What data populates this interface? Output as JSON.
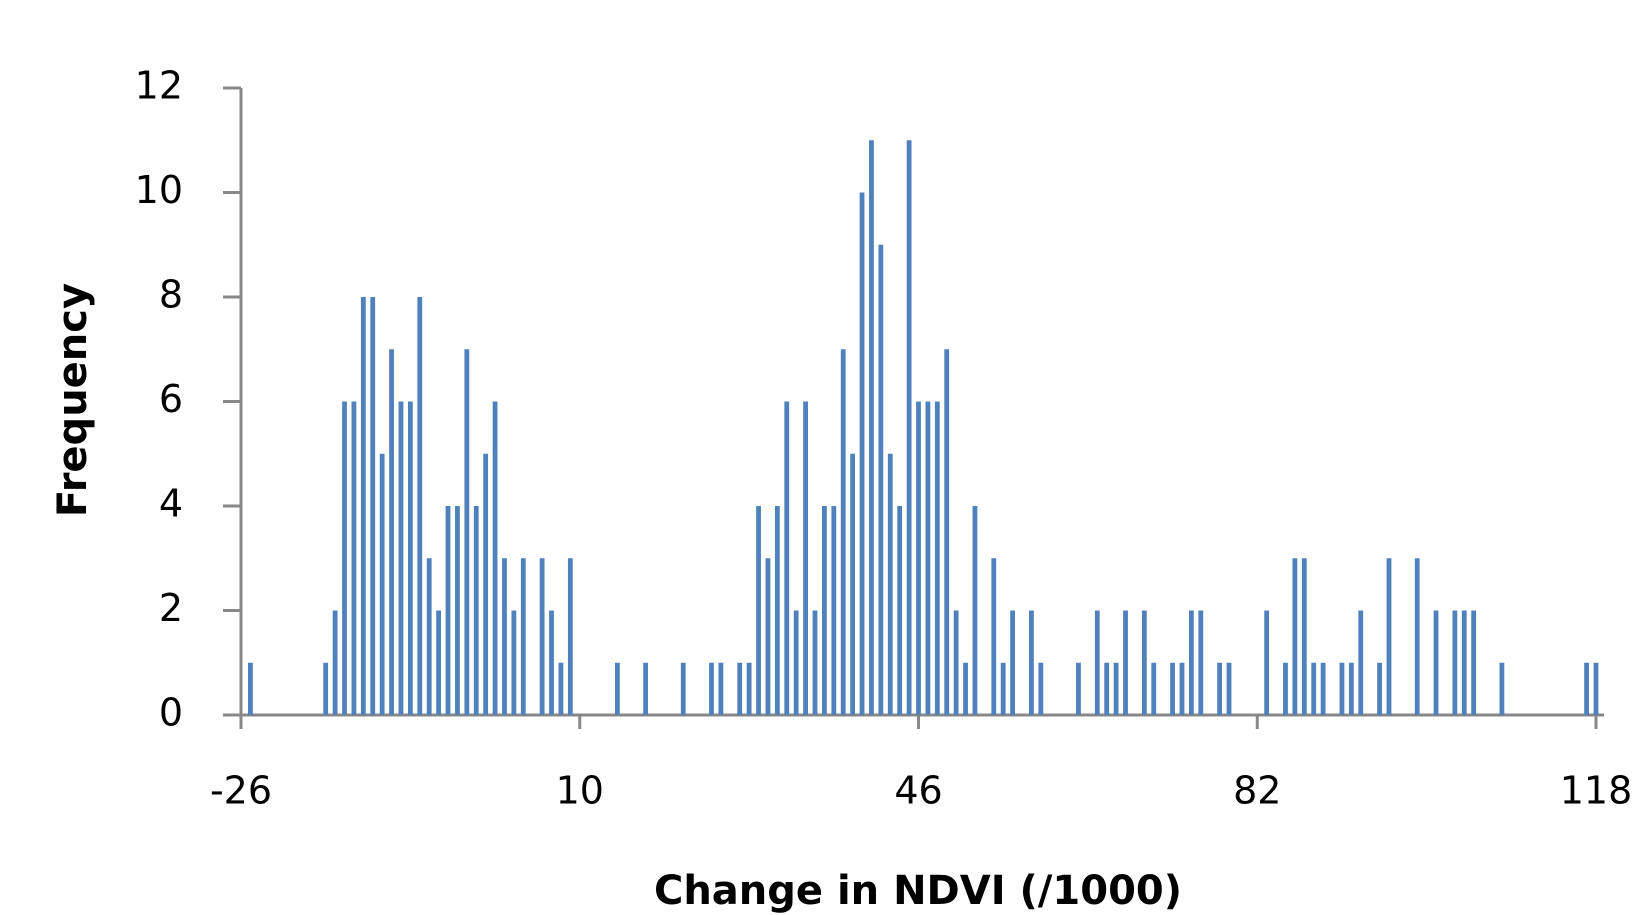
{
  "chart_data": {
    "type": "bar",
    "x_label": "Change in NDVI (/1000)",
    "y_label": "Frequency",
    "color": "#4f81bd",
    "x": [
      -25,
      -17,
      -16,
      -15,
      -14,
      -13,
      -12,
      -11,
      -10,
      -9,
      -8,
      -7,
      -6,
      -5,
      -4,
      -3,
      -2,
      -1,
      0,
      1,
      2,
      3,
      4,
      6,
      7,
      8,
      9,
      14,
      17,
      21,
      24,
      25,
      27,
      28,
      29,
      30,
      31,
      32,
      33,
      34,
      35,
      36,
      37,
      38,
      39,
      40,
      41,
      42,
      43,
      44,
      45,
      46,
      47,
      48,
      49,
      50,
      51,
      52,
      54,
      55,
      56,
      58,
      59,
      63,
      65,
      66,
      67,
      68,
      70,
      71,
      73,
      74,
      75,
      76,
      78,
      79,
      83,
      85,
      86,
      87,
      88,
      89,
      91,
      92,
      93,
      95,
      96,
      99,
      101,
      103,
      104,
      105,
      108,
      117,
      118
    ],
    "values": [
      1,
      1,
      2,
      6,
      6,
      8,
      8,
      5,
      7,
      6,
      6,
      8,
      3,
      2,
      4,
      4,
      7,
      4,
      5,
      6,
      3,
      2,
      3,
      3,
      2,
      1,
      3,
      1,
      1,
      1,
      1,
      1,
      1,
      1,
      4,
      3,
      4,
      6,
      2,
      6,
      2,
      4,
      4,
      7,
      5,
      10,
      11,
      9,
      5,
      4,
      11,
      6,
      6,
      6,
      7,
      2,
      1,
      4,
      3,
      1,
      2,
      2,
      1,
      1,
      2,
      1,
      1,
      2,
      2,
      1,
      1,
      1,
      2,
      2,
      1,
      1,
      2,
      1,
      3,
      3,
      1,
      1,
      1,
      1,
      2,
      1,
      3,
      3,
      2,
      2,
      2,
      2,
      1,
      1,
      1
    ],
    "xlim": [
      -26,
      118
    ],
    "xticks": [
      -26,
      10,
      46,
      82,
      118
    ],
    "ylim": [
      0,
      12
    ],
    "yticks": [
      0,
      2,
      4,
      6,
      8,
      10,
      12
    ]
  }
}
